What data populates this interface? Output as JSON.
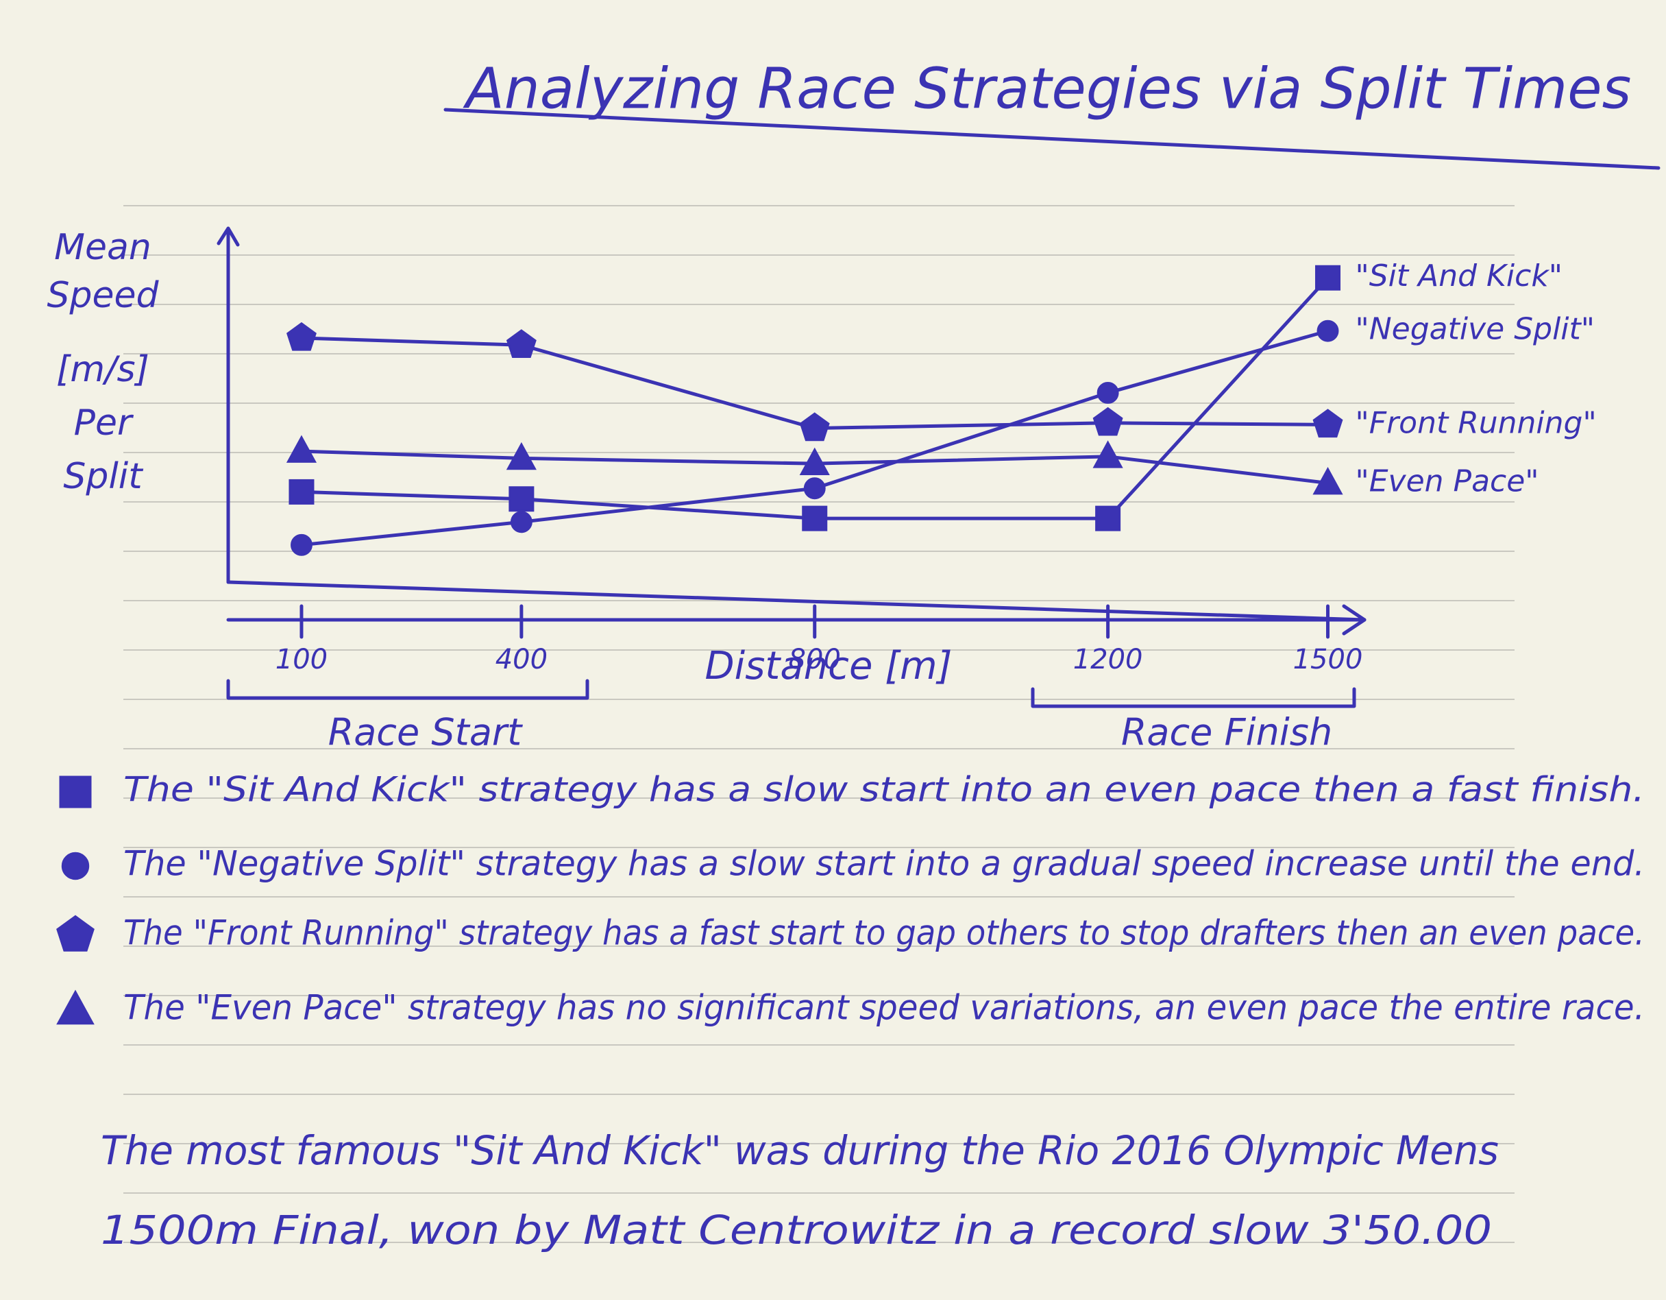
{
  "chart_data": {
    "type": "line",
    "title": "Analyzing Race Strategies via Split Times",
    "y_label": [
      "Mean",
      "Speed",
      "[m/s]",
      "Per",
      "Split"
    ],
    "x_label": "Distance [m]",
    "x": [
      100,
      400,
      800,
      1200,
      1500
    ],
    "xlim": [
      0,
      1550
    ],
    "xticks": [
      100,
      400,
      800,
      1200,
      1500
    ],
    "ylim": [
      0,
      10
    ],
    "color": "#3b33b3",
    "series": [
      {
        "name": "\"Sit And Kick\"",
        "marker": "square",
        "values": [
          2.55,
          2.35,
          1.8,
          1.8,
          8.6
        ]
      },
      {
        "name": "\"Negative Split\"",
        "marker": "circle",
        "values": [
          1.05,
          1.7,
          2.65,
          5.35,
          7.1
        ]
      },
      {
        "name": "\"Front Running\"",
        "marker": "pentagon",
        "values": [
          6.9,
          6.7,
          4.35,
          4.5,
          4.45
        ]
      },
      {
        "name": "\"Even Pace\"",
        "marker": "triangle",
        "values": [
          3.7,
          3.5,
          3.35,
          3.55,
          2.8
        ]
      }
    ],
    "annotations": [
      "Race Start",
      "Race Finish"
    ],
    "notes": [
      "The \"Sit And Kick\" strategy has a slow start into an even pace then a fast finish.",
      "The \"Negative Split\" strategy has a slow start into a gradual speed increase until the end.",
      "The \"Front Running\" strategy has a fast start to gap others to stop drafters then an even pace.",
      "The \"Even Pace\" strategy has no significant speed variations, an even pace the entire race."
    ],
    "footnote": [
      "The most famous \"Sit And Kick\" was during the Rio 2016 Olympic Mens",
      "1500m Final, won by Matt Centrowitz in a record slow 3'50.00"
    ]
  }
}
